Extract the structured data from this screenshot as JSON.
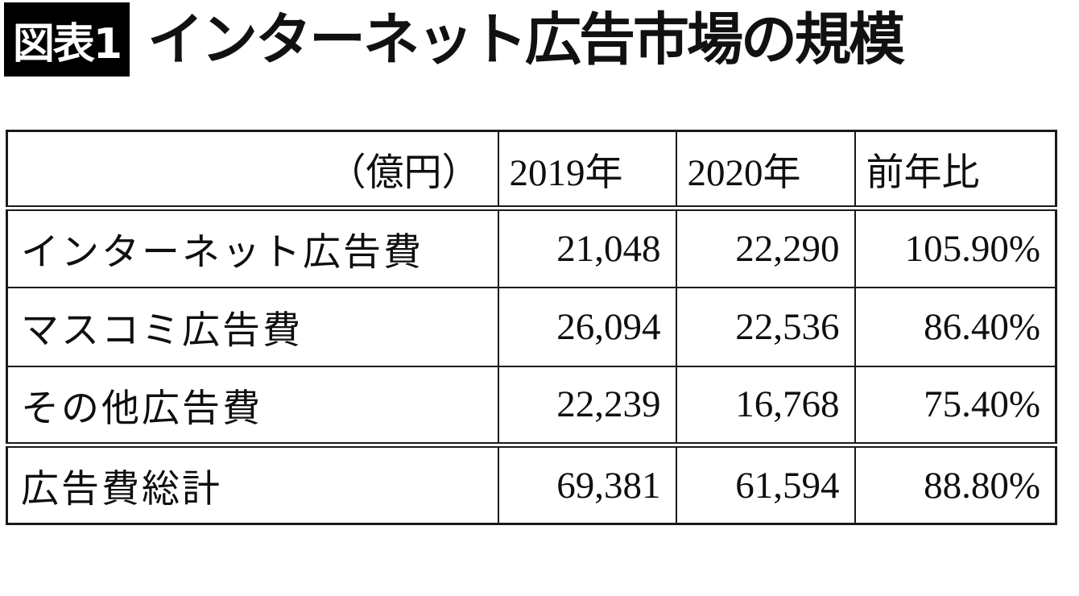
{
  "figure": {
    "badge": "図表1",
    "title": "インターネット広告市場の規模"
  },
  "table": {
    "unit_header": "（億円）",
    "columns": [
      "2019年",
      "2020年",
      "前年比"
    ],
    "rows": [
      {
        "label": "インターネット広告費",
        "values": [
          "21,048",
          "22,290",
          "105.90%"
        ]
      },
      {
        "label": "マスコミ広告費",
        "values": [
          "26,094",
          "22,536",
          "86.40%"
        ]
      },
      {
        "label": "その他広告費",
        "values": [
          "22,239",
          "16,768",
          "75.40%"
        ]
      },
      {
        "label": "広告費総計",
        "values": [
          "69,381",
          "61,594",
          "88.80%"
        ]
      }
    ]
  },
  "chart_data": {
    "type": "table",
    "title": "インターネット広告市場の規模",
    "unit": "億円",
    "columns": [
      "2019年",
      "2020年",
      "前年比"
    ],
    "rows": [
      {
        "label": "インターネット広告費",
        "y2019": 21048,
        "y2020": 22290,
        "yoy_pct": 105.9
      },
      {
        "label": "マスコミ広告費",
        "y2019": 26094,
        "y2020": 22536,
        "yoy_pct": 86.4
      },
      {
        "label": "その他広告費",
        "y2019": 22239,
        "y2020": 16768,
        "yoy_pct": 75.4
      },
      {
        "label": "広告費総計",
        "y2019": 69381,
        "y2020": 61594,
        "yoy_pct": 88.8
      }
    ]
  },
  "colors": {
    "background": "#ffffff",
    "text": "#0f0f0f",
    "border": "#1a1a1a",
    "badge_bg": "#000000",
    "badge_text": "#ffffff"
  }
}
